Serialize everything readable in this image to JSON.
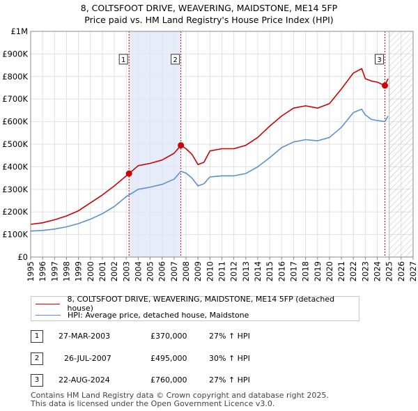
{
  "header": {
    "line1": "8, COLTSFOOT DRIVE, WEAVERING, MAIDSTONE, ME14 5FP",
    "line2": "Price paid vs. HM Land Registry's House Price Index (HPI)"
  },
  "chart_data": {
    "type": "line",
    "title": "8, COLTSFOOT DRIVE, WEAVERING, MAIDSTONE, ME14 5FP",
    "subtitle": "Price paid vs. HM Land Registry's House Price Index (HPI)",
    "xlabel": "",
    "ylabel": "",
    "xlim": [
      1995,
      2027
    ],
    "ylim": [
      0,
      1000000
    ],
    "x_ticks": [
      "1995",
      "1996",
      "1997",
      "1998",
      "1999",
      "2000",
      "2001",
      "2002",
      "2003",
      "2004",
      "2005",
      "2006",
      "2007",
      "2008",
      "2009",
      "2010",
      "2011",
      "2012",
      "2013",
      "2014",
      "2015",
      "2016",
      "2017",
      "2018",
      "2019",
      "2020",
      "2021",
      "2022",
      "2023",
      "2024",
      "2025",
      "2026",
      "2027"
    ],
    "y_ticks": [
      {
        "value": 0,
        "label": "£0"
      },
      {
        "value": 100000,
        "label": "£100K"
      },
      {
        "value": 200000,
        "label": "£200K"
      },
      {
        "value": 300000,
        "label": "£300K"
      },
      {
        "value": 400000,
        "label": "£400K"
      },
      {
        "value": 500000,
        "label": "£500K"
      },
      {
        "value": 600000,
        "label": "£600K"
      },
      {
        "value": 700000,
        "label": "£700K"
      },
      {
        "value": 800000,
        "label": "£800K"
      },
      {
        "value": 900000,
        "label": "£900K"
      },
      {
        "value": 1000000,
        "label": "£1M"
      }
    ],
    "grid": true,
    "ownership_shade": {
      "start": 2003.23,
      "end": 2007.57
    },
    "future_hatch": {
      "start": 2025.0,
      "end": 2027.0
    },
    "series": [
      {
        "name": "8, COLTSFOOT DRIVE, WEAVERING, MAIDSTONE, ME14 5FP (detached house)",
        "color": "#cc0000",
        "x": [
          1995.0,
          1996.0,
          1997.0,
          1998.0,
          1999.0,
          2000.0,
          2001.0,
          2002.0,
          2003.23,
          2004.0,
          2005.0,
          2006.0,
          2007.0,
          2007.57,
          2008.0,
          2008.5,
          2009.0,
          2009.5,
          2010.0,
          2011.0,
          2012.0,
          2013.0,
          2014.0,
          2015.0,
          2016.0,
          2017.0,
          2018.0,
          2019.0,
          2020.0,
          2021.0,
          2022.0,
          2022.7,
          2023.0,
          2023.5,
          2024.0,
          2024.64,
          2024.9
        ],
        "y": [
          145000,
          152000,
          165000,
          182000,
          205000,
          240000,
          275000,
          315000,
          370000,
          405000,
          415000,
          430000,
          460000,
          495000,
          480000,
          455000,
          410000,
          420000,
          470000,
          480000,
          480000,
          495000,
          530000,
          580000,
          625000,
          660000,
          670000,
          660000,
          680000,
          745000,
          815000,
          835000,
          790000,
          780000,
          775000,
          760000,
          790000
        ]
      },
      {
        "name": "HPI: Average price, detached house, Maidstone",
        "color": "#5b8fd0",
        "x": [
          1995.0,
          1996.0,
          1997.0,
          1998.0,
          1999.0,
          2000.0,
          2001.0,
          2002.0,
          2003.0,
          2004.0,
          2005.0,
          2006.0,
          2007.0,
          2007.57,
          2008.0,
          2008.5,
          2009.0,
          2009.5,
          2010.0,
          2011.0,
          2012.0,
          2013.0,
          2014.0,
          2015.0,
          2016.0,
          2017.0,
          2018.0,
          2019.0,
          2020.0,
          2021.0,
          2022.0,
          2022.7,
          2023.0,
          2023.5,
          2024.0,
          2024.64,
          2024.9
        ],
        "y": [
          115000,
          118000,
          124000,
          134000,
          148000,
          168000,
          192000,
          224000,
          268000,
          300000,
          310000,
          322000,
          345000,
          380000,
          372000,
          350000,
          315000,
          325000,
          355000,
          360000,
          360000,
          370000,
          400000,
          440000,
          485000,
          510000,
          520000,
          515000,
          530000,
          575000,
          640000,
          655000,
          630000,
          610000,
          605000,
          600000,
          625000
        ]
      }
    ],
    "sales": [
      {
        "label": "1",
        "x": 2003.23,
        "y": 370000,
        "date": "27-MAR-2003",
        "price": "£370,000",
        "hpi": "27% ↑ HPI"
      },
      {
        "label": "2",
        "x": 2007.57,
        "y": 495000,
        "date": "26-JUL-2007",
        "price": "£495,000",
        "hpi": "30% ↑ HPI"
      },
      {
        "label": "3",
        "x": 2024.64,
        "y": 760000,
        "date": "22-AUG-2024",
        "price": "£760,000",
        "hpi": "27% ↑ HPI"
      }
    ]
  },
  "legend": {
    "property_label": "8, COLTSFOOT DRIVE, WEAVERING, MAIDSTONE, ME14 5FP (detached house)",
    "hpi_label": "HPI: Average price, detached house, Maidstone",
    "property_color": "#cc0000",
    "hpi_color": "#5b8fd0"
  },
  "footer": {
    "line1": "Contains HM Land Registry data © Crown copyright and database right 2025.",
    "line2": "This data is licensed under the Open Government Licence v3.0."
  }
}
